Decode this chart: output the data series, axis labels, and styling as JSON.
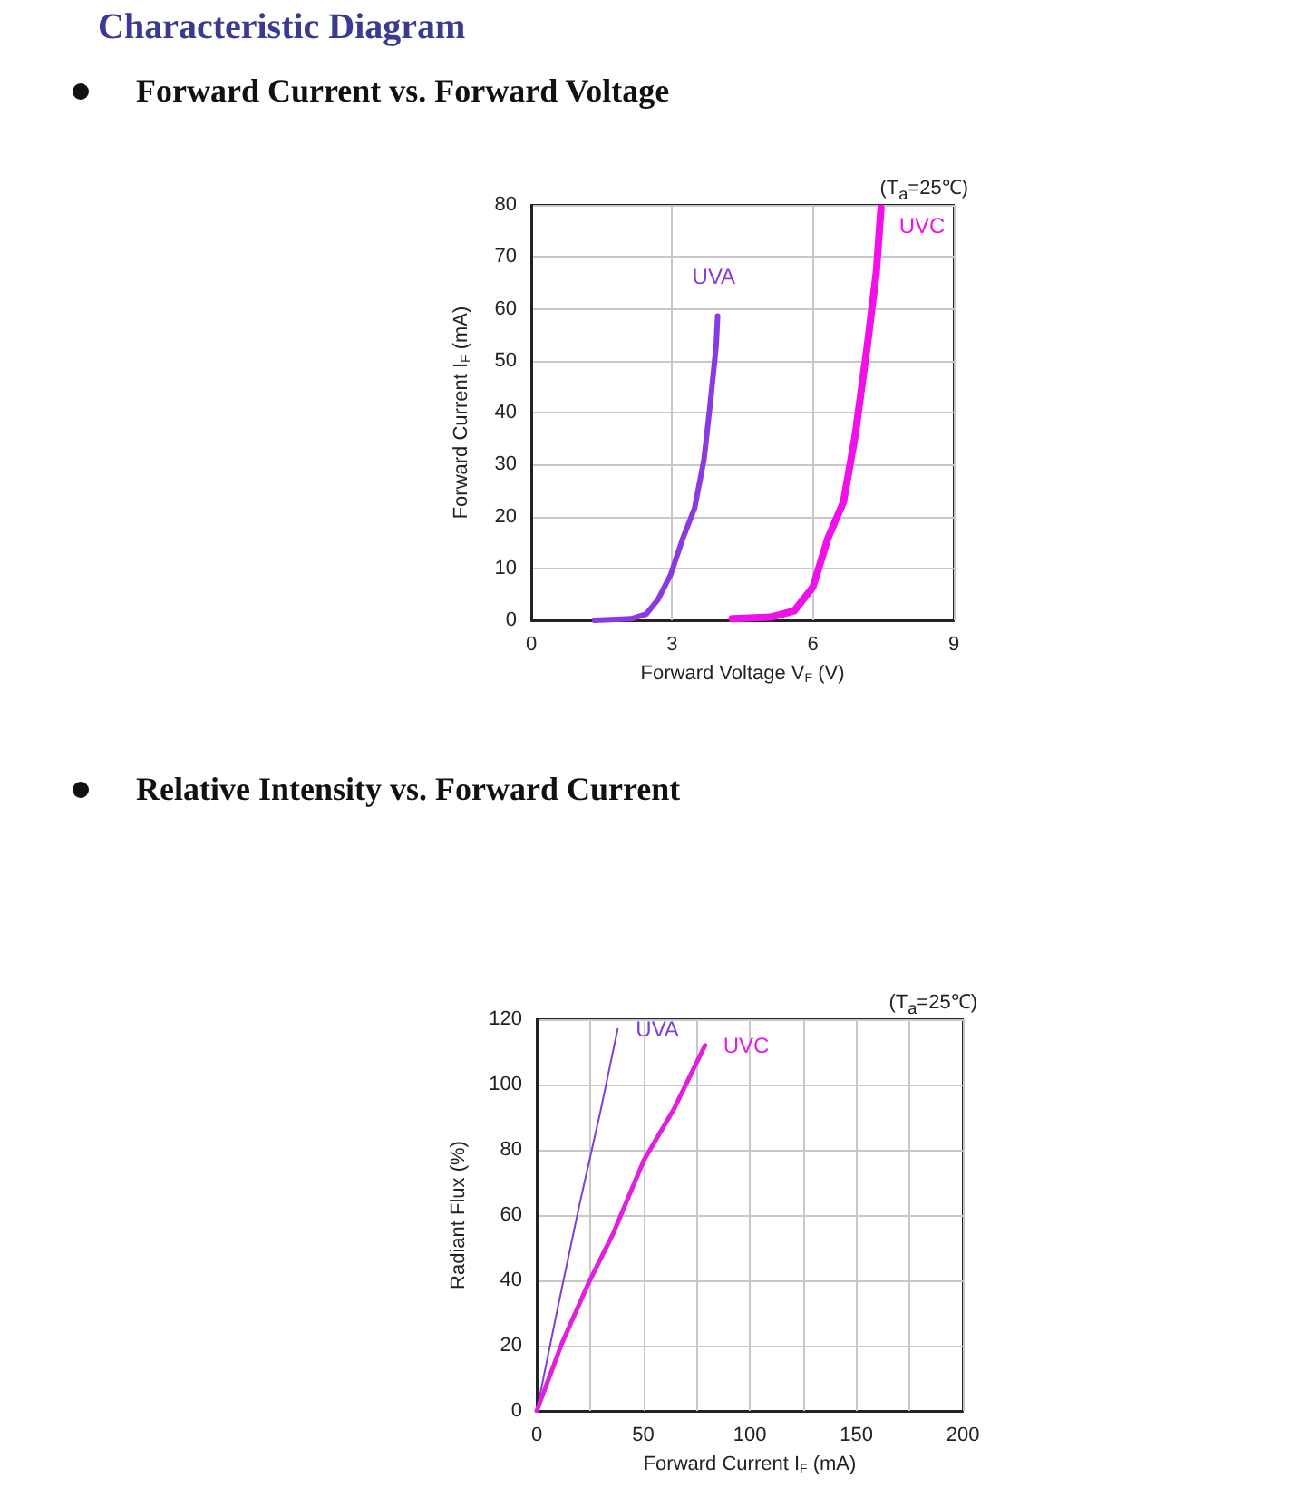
{
  "chart_data": [
    {
      "type": "line",
      "title": "Forward Current vs. Forward Voltage",
      "annotations": [
        "Characteristic Diagram",
        "(T$_{a}$=25℃)"
      ],
      "xlabel": "Forward Voltage V$_{F}$ (V)",
      "ylabel": "Forward Current I$_{F}$ (mA)",
      "xlim": [
        0,
        9
      ],
      "xticks": [
        0,
        3,
        6,
        9
      ],
      "ylim": [
        0,
        80
      ],
      "yticks": [
        0,
        10,
        20,
        30,
        40,
        50,
        60,
        70,
        80
      ],
      "grid": true,
      "legend": false,
      "marker": "none",
      "line_style": "solid",
      "series": [
        {
          "name": "UVA",
          "color": "#8a3be0",
          "x": [
            1.35,
            2.13,
            2.45,
            2.7,
            2.97,
            3.23,
            3.48,
            3.68,
            3.81,
            3.94,
            3.97
          ],
          "values": [
            0,
            0.3,
            1.2,
            4,
            8.8,
            15.8,
            21.6,
            31,
            41.5,
            53,
            58.6
          ]
        },
        {
          "name": "UVC",
          "color": "#f010e8",
          "x": [
            4.28,
            5.1,
            5.6,
            6.0,
            6.32,
            6.65,
            6.9,
            7.16,
            7.35,
            7.45
          ],
          "values": [
            0.3,
            0.6,
            1.8,
            6.4,
            15.8,
            22.8,
            35.6,
            53,
            67,
            79.4
          ]
        }
      ]
    },
    {
      "type": "line",
      "title": "Relative Intensity vs. Forward Current",
      "annotations": [
        "(T$_{a}$=25℃)"
      ],
      "xlabel": "Forward Current I$_{F}$ (mA)",
      "ylabel": "Radiant Flux (%)",
      "xlim": [
        0,
        200
      ],
      "xticks": [
        0,
        {
          "value": 25,
          "label": null
        },
        50,
        {
          "value": 75,
          "label": null
        },
        100,
        {
          "value": 125,
          "label": null
        },
        150,
        {
          "value": 175,
          "label": null
        },
        200
      ],
      "ylim": [
        0,
        120
      ],
      "yticks": [
        0,
        20,
        40,
        60,
        80,
        100,
        120
      ],
      "grid": true,
      "legend": false,
      "marker": "none",
      "line_style": "solid",
      "series": [
        {
          "name": "UVA",
          "color": "#7a40d8",
          "x": [
            0,
            10,
            20,
            30,
            38
          ],
          "values": [
            0,
            32,
            63,
            92,
            117
          ]
        },
        {
          "name": "UVC",
          "color": "#e020dc",
          "x": [
            0,
            12,
            24.7,
            36,
            50.3,
            64.5,
            79
          ],
          "values": [
            0,
            21,
            39.7,
            54.5,
            76.8,
            92.6,
            112
          ]
        }
      ]
    }
  ]
}
